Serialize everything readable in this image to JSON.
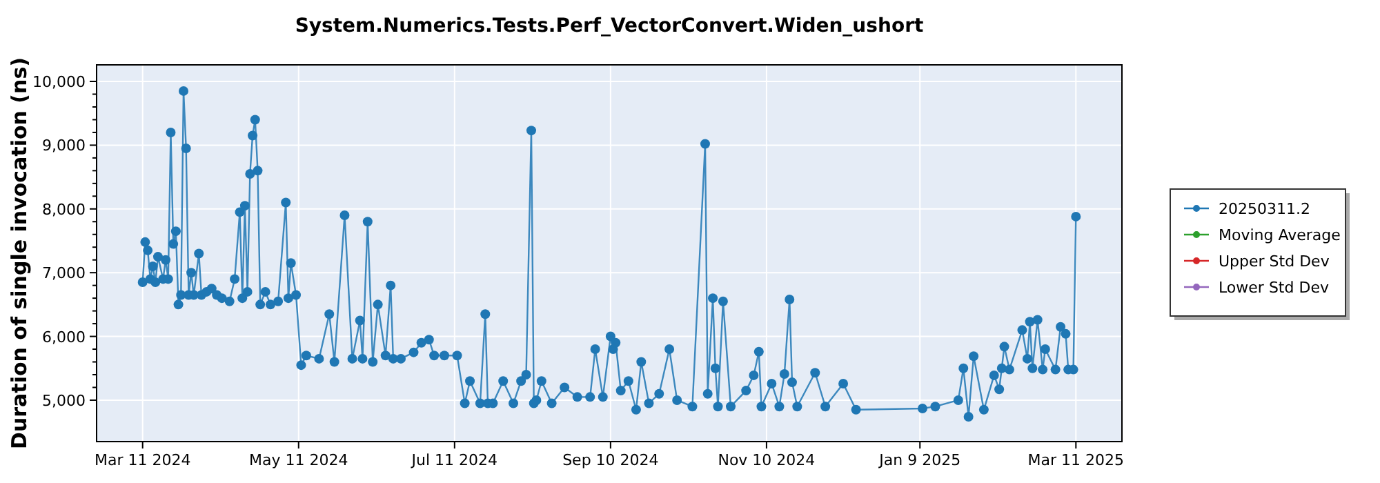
{
  "chart_data": {
    "type": "line",
    "title": "System.Numerics.Tests.Perf_VectorConvert.Widen_ushort",
    "ylabel": "Duration of single invocation (ns)",
    "xlim": [
      "2024-02-22",
      "2025-03-29"
    ],
    "xticks": [
      {
        "value": "2024-03-11",
        "label": "Mar 11 2024"
      },
      {
        "value": "2024-05-11",
        "label": "May 11 2024"
      },
      {
        "value": "2024-07-11",
        "label": "Jul 11 2024"
      },
      {
        "value": "2024-09-10",
        "label": "Sep 10 2024"
      },
      {
        "value": "2024-11-10",
        "label": "Nov 10 2024"
      },
      {
        "value": "2025-01-09",
        "label": "Jan 9 2025"
      },
      {
        "value": "2025-03-11",
        "label": "Mar 11 2025"
      }
    ],
    "ylim": [
      4350,
      10260
    ],
    "yticks": [
      {
        "value": 5000,
        "label": "5,000"
      },
      {
        "value": 6000,
        "label": "6,000"
      },
      {
        "value": 7000,
        "label": "7,000"
      },
      {
        "value": 8000,
        "label": "8,000"
      },
      {
        "value": 9000,
        "label": "9,000"
      },
      {
        "value": 10000,
        "label": "10,000"
      }
    ],
    "grid": true,
    "legend": "right",
    "marker": "circle",
    "series": [
      {
        "name": "20250311.2",
        "color": "#1f77b4",
        "x": [
          "2024-03-11",
          "2024-03-12",
          "2024-03-13",
          "2024-03-14",
          "2024-03-15",
          "2024-03-16",
          "2024-03-17",
          "2024-03-19",
          "2024-03-20",
          "2024-03-21",
          "2024-03-22",
          "2024-03-23",
          "2024-03-24",
          "2024-03-25",
          "2024-03-26",
          "2024-03-27",
          "2024-03-28",
          "2024-03-29",
          "2024-03-30",
          "2024-03-31",
          "2024-04-02",
          "2024-04-03",
          "2024-04-05",
          "2024-04-07",
          "2024-04-09",
          "2024-04-11",
          "2024-04-14",
          "2024-04-16",
          "2024-04-18",
          "2024-04-19",
          "2024-04-20",
          "2024-04-21",
          "2024-04-22",
          "2024-04-23",
          "2024-04-24",
          "2024-04-25",
          "2024-04-26",
          "2024-04-28",
          "2024-04-30",
          "2024-05-03",
          "2024-05-06",
          "2024-05-07",
          "2024-05-08",
          "2024-05-10",
          "2024-05-12",
          "2024-05-14",
          "2024-05-19",
          "2024-05-23",
          "2024-05-25",
          "2024-05-29",
          "2024-06-01",
          "2024-06-04",
          "2024-06-05",
          "2024-06-07",
          "2024-06-09",
          "2024-06-11",
          "2024-06-14",
          "2024-06-16",
          "2024-06-17",
          "2024-06-20",
          "2024-06-25",
          "2024-06-28",
          "2024-07-01",
          "2024-07-03",
          "2024-07-07",
          "2024-07-12",
          "2024-07-15",
          "2024-07-17",
          "2024-07-21",
          "2024-07-23",
          "2024-07-24",
          "2024-07-26",
          "2024-07-30",
          "2024-08-03",
          "2024-08-06",
          "2024-08-08",
          "2024-08-10",
          "2024-08-11",
          "2024-08-12",
          "2024-08-14",
          "2024-08-18",
          "2024-08-23",
          "2024-08-28",
          "2024-09-02",
          "2024-09-04",
          "2024-09-07",
          "2024-09-10",
          "2024-09-11",
          "2024-09-12",
          "2024-09-14",
          "2024-09-17",
          "2024-09-20",
          "2024-09-22",
          "2024-09-25",
          "2024-09-29",
          "2024-10-03",
          "2024-10-06",
          "2024-10-12",
          "2024-10-17",
          "2024-10-18",
          "2024-10-20",
          "2024-10-21",
          "2024-10-22",
          "2024-10-24",
          "2024-10-27",
          "2024-11-02",
          "2024-11-05",
          "2024-11-07",
          "2024-11-08",
          "2024-11-12",
          "2024-11-15",
          "2024-11-17",
          "2024-11-19",
          "2024-11-20",
          "2024-11-22",
          "2024-11-29",
          "2024-12-03",
          "2024-12-10",
          "2024-12-15",
          "2025-01-10",
          "2025-01-15",
          "2025-01-24",
          "2025-01-26",
          "2025-01-28",
          "2025-01-30",
          "2025-02-03",
          "2025-02-07",
          "2025-02-09",
          "2025-02-10",
          "2025-02-11",
          "2025-02-13",
          "2025-02-18",
          "2025-02-20",
          "2025-02-21",
          "2025-02-22",
          "2025-02-24",
          "2025-02-26",
          "2025-02-27",
          "2025-03-03",
          "2025-03-05",
          "2025-03-07",
          "2025-03-08",
          "2025-03-10",
          "2025-03-11"
        ],
        "values": [
          6850,
          7480,
          7350,
          6900,
          7100,
          6850,
          7250,
          6900,
          7200,
          6900,
          9200,
          7450,
          7650,
          6500,
          6650,
          9850,
          8950,
          6650,
          7000,
          6650,
          7300,
          6650,
          6700,
          6750,
          6650,
          6600,
          6550,
          6900,
          7950,
          6600,
          8050,
          6700,
          8550,
          9150,
          9400,
          8600,
          6500,
          6700,
          6500,
          6550,
          8100,
          6600,
          7150,
          6650,
          5550,
          5700,
          5650,
          6350,
          5600,
          7900,
          5650,
          6250,
          5650,
          7800,
          5600,
          6500,
          5700,
          6800,
          5650,
          5650,
          5750,
          5900,
          5950,
          5700,
          5700,
          5700,
          4950,
          5300,
          4950,
          6350,
          4950,
          4950,
          5300,
          4950,
          5300,
          5400,
          9230,
          4950,
          5000,
          5300,
          4950,
          5200,
          5050,
          5050,
          5800,
          5050,
          6000,
          5800,
          5900,
          5150,
          5300,
          4850,
          5600,
          4950,
          5100,
          5800,
          5000,
          4900,
          9020,
          5100,
          6600,
          5500,
          4900,
          6550,
          4900,
          5150,
          5390,
          5760,
          4900,
          5260,
          4900,
          5410,
          6580,
          5280,
          4900,
          5430,
          4900,
          5260,
          4850,
          4870,
          4900,
          5000,
          5500,
          4740,
          5690,
          4850,
          5390,
          5170,
          5500,
          5840,
          5480,
          6100,
          5650,
          6230,
          5500,
          6260,
          5480,
          5800,
          5480,
          6150,
          6040,
          5480,
          5480,
          7880
        ]
      },
      {
        "name": "Moving Average",
        "color": "#2ca02c"
      },
      {
        "name": "Upper Std Dev",
        "color": "#d62728"
      },
      {
        "name": "Lower Std Dev",
        "color": "#9467bd"
      }
    ]
  }
}
